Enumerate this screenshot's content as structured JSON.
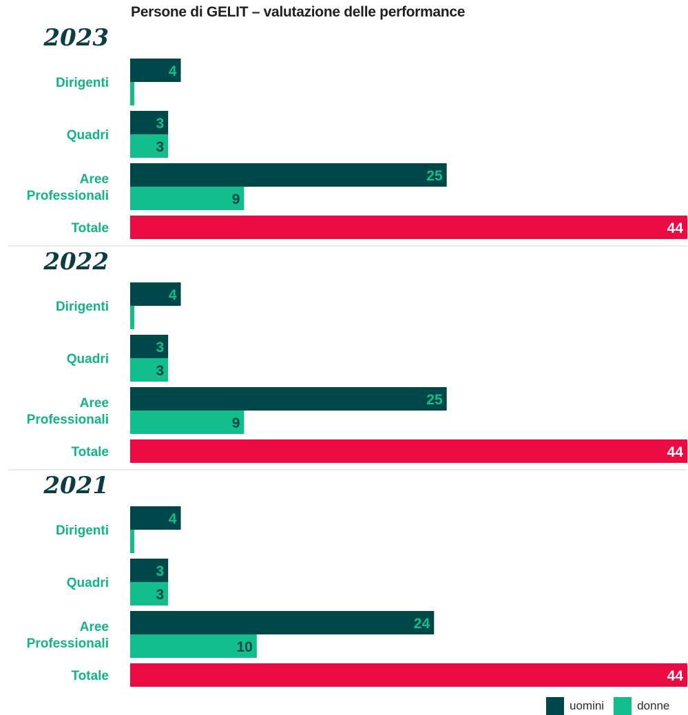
{
  "title": "Persone di GELIT – valutazione delle performance",
  "colors": {
    "uomini": "#00474a",
    "donne": "#12be8c",
    "totale": "#ec0a43",
    "divider": "#d9d9d9",
    "category": "#12b386"
  },
  "legend": [
    {
      "key": "uomini",
      "label": "uomini"
    },
    {
      "key": "donne",
      "label": "donne"
    }
  ],
  "chart_data": {
    "type": "bar",
    "orientation": "horizontal",
    "x_max": 44,
    "groups": [
      {
        "year": "2023",
        "categories": [
          {
            "label": [
              "Dirigenti"
            ],
            "uomini": 4,
            "donne": 0
          },
          {
            "label": [
              "Quadri"
            ],
            "uomini": 3,
            "donne": 3
          },
          {
            "label": [
              "Aree",
              "Professionali"
            ],
            "uomini": 25,
            "donne": 9
          }
        ],
        "total": {
          "label": "Totale",
          "value": 44
        }
      },
      {
        "year": "2022",
        "categories": [
          {
            "label": [
              "Dirigenti"
            ],
            "uomini": 4,
            "donne": 0
          },
          {
            "label": [
              "Quadri"
            ],
            "uomini": 3,
            "donne": 3
          },
          {
            "label": [
              "Aree",
              "Professionali"
            ],
            "uomini": 25,
            "donne": 9
          }
        ],
        "total": {
          "label": "Totale",
          "value": 44
        }
      },
      {
        "year": "2021",
        "categories": [
          {
            "label": [
              "Dirigenti"
            ],
            "uomini": 4,
            "donne": 0
          },
          {
            "label": [
              "Quadri"
            ],
            "uomini": 3,
            "donne": 3
          },
          {
            "label": [
              "Aree",
              "Professionali"
            ],
            "uomini": 24,
            "donne": 10
          }
        ],
        "total": {
          "label": "Totale",
          "value": 44
        }
      }
    ]
  }
}
